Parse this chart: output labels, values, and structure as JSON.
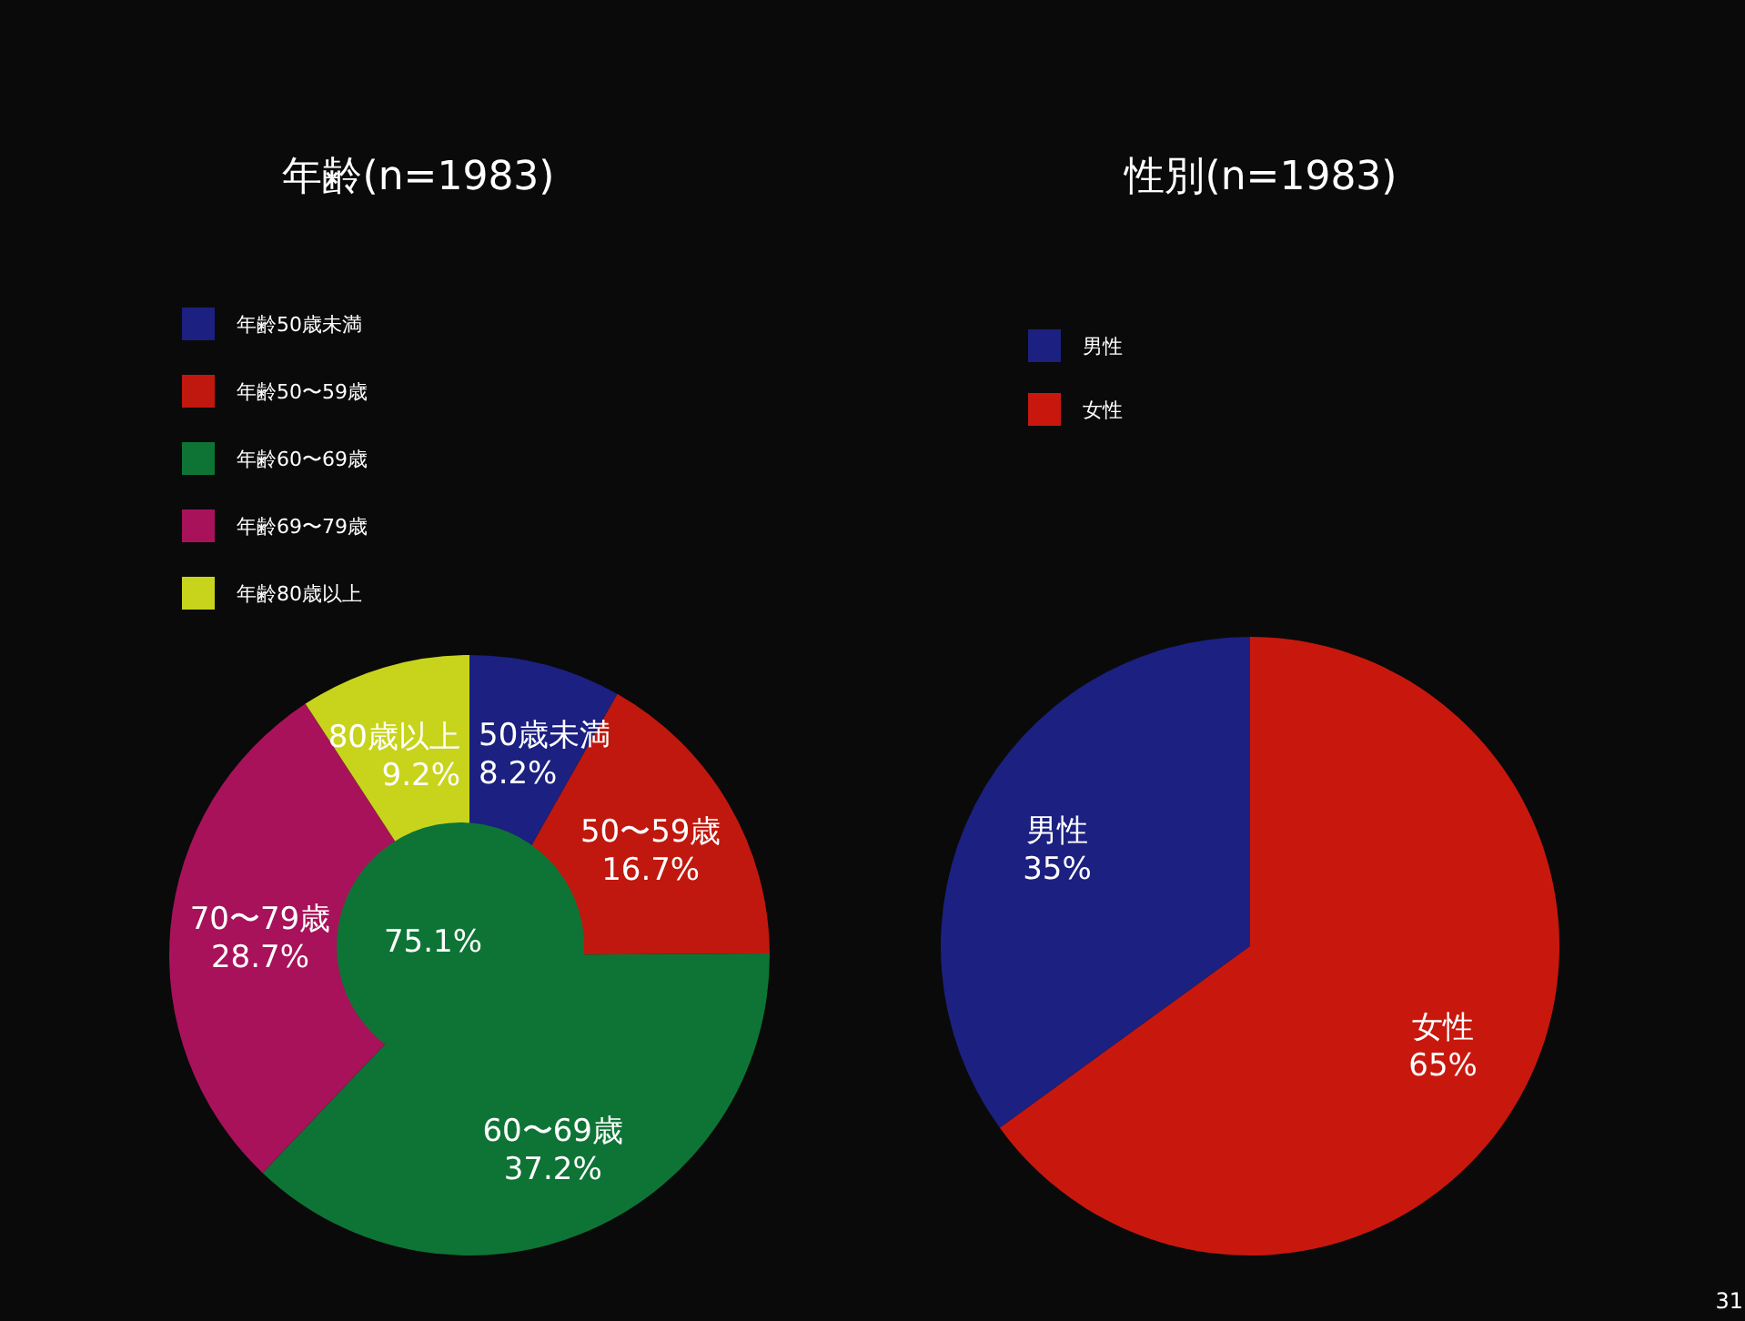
{
  "chart_data": [
    {
      "type": "pie",
      "title": "年齢(n=1983)",
      "categories": [
        "年齢50歳未満",
        "年齢50〜59歳",
        "年齢60〜69歳",
        "年齢69〜79歳",
        "年齢80歳以上"
      ],
      "values": [
        8.2,
        16.7,
        37.2,
        28.7,
        9.2
      ],
      "colors": [
        "#1c2080",
        "#c0180e",
        "#0e7436",
        "#a8125a",
        "#c8d41c"
      ],
      "value_labels": [
        "50歳未満\n8.2%",
        "50〜59歳\n16.7%",
        "60〜69歳\n37.2%",
        "70〜79歳\n28.7%",
        "80歳以上\n9.2%"
      ],
      "legend": "top left",
      "annotations": [
        "75.1%"
      ]
    },
    {
      "type": "pie",
      "title": "性別(n=1983)",
      "categories": [
        "男性",
        "女性"
      ],
      "values": [
        35,
        65
      ],
      "colors": [
        "#1c2080",
        "#c8180e"
      ],
      "value_labels": [
        "男性\n35%",
        "女性\n65%"
      ],
      "legend": "top left",
      "annotations": [
        "31"
      ]
    }
  ]
}
